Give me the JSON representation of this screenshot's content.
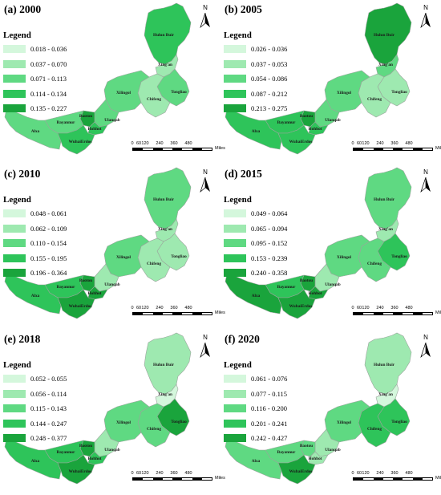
{
  "legend_title": "Legend",
  "region_labels": {
    "hulunbuir": "Hulun Buir",
    "xingan": "Xing'an",
    "tongliao": "Tongliao",
    "chifeng": "Chifeng",
    "xilingol": "Xilingol",
    "ulanqab": "Ulanqab",
    "baotou": "Baotou",
    "hohhot": "Hohhot",
    "bayannur": "Bayannur",
    "alxa": "Alxa",
    "wuhai_ordos": "WuhaiErdos"
  },
  "scale": {
    "ticks": [
      "0",
      "60",
      "120",
      "240",
      "360",
      "480"
    ],
    "unit": "Miles"
  },
  "north_label": "N",
  "panels": [
    {
      "title": "(a) 2000",
      "legend": [
        {
          "label": "0.018 - 0.036",
          "color": "#d4f7dc"
        },
        {
          "label": "0.037 - 0.070",
          "color": "#9ee9b0"
        },
        {
          "label": "0.071 - 0.113",
          "color": "#5fd982"
        },
        {
          "label": "0.114 - 0.134",
          "color": "#2ec45a"
        },
        {
          "label": "0.135 - 0.227",
          "color": "#1aa43c"
        }
      ],
      "classes": {
        "hulunbuir": 3,
        "xingan": 1,
        "tongliao": 2,
        "chifeng": 1,
        "xilingol": 2,
        "ulanqab": 2,
        "baotou": 4,
        "hohhot": 3,
        "bayannur": 2,
        "alxa": 2,
        "wuhai_ordos": 3
      }
    },
    {
      "title": "(b) 2005",
      "legend": [
        {
          "label": "0.026 - 0.036",
          "color": "#d4f7dc"
        },
        {
          "label": "0.037 - 0.053",
          "color": "#9ee9b0"
        },
        {
          "label": "0.054 - 0.086",
          "color": "#5fd982"
        },
        {
          "label": "0.087 - 0.212",
          "color": "#2ec45a"
        },
        {
          "label": "0.213 - 0.275",
          "color": "#1aa43c"
        }
      ],
      "classes": {
        "hulunbuir": 4,
        "xingan": 2,
        "tongliao": 1,
        "chifeng": 1,
        "xilingol": 2,
        "ulanqab": 2,
        "baotou": 4,
        "hohhot": 3,
        "bayannur": 3,
        "alxa": 3,
        "wuhai_ordos": 3
      }
    },
    {
      "title": "(c) 2010",
      "legend": [
        {
          "label": "0.048 - 0.061",
          "color": "#d4f7dc"
        },
        {
          "label": "0.062 - 0.109",
          "color": "#9ee9b0"
        },
        {
          "label": "0.110 - 0.154",
          "color": "#5fd982"
        },
        {
          "label": "0.155 - 0.195",
          "color": "#2ec45a"
        },
        {
          "label": "0.196 - 0.364",
          "color": "#1aa43c"
        }
      ],
      "classes": {
        "hulunbuir": 2,
        "xingan": 1,
        "tongliao": 1,
        "chifeng": 1,
        "xilingol": 2,
        "ulanqab": 1,
        "baotou": 4,
        "hohhot": 4,
        "bayannur": 3,
        "alxa": 3,
        "wuhai_ordos": 4
      }
    },
    {
      "title": "(d) 2015",
      "legend": [
        {
          "label": "0.049 - 0.064",
          "color": "#d4f7dc"
        },
        {
          "label": "0.065 - 0.094",
          "color": "#9ee9b0"
        },
        {
          "label": "0.095 - 0.152",
          "color": "#5fd982"
        },
        {
          "label": "0.153 - 0.239",
          "color": "#2ec45a"
        },
        {
          "label": "0.240 - 0.358",
          "color": "#1aa43c"
        }
      ],
      "classes": {
        "hulunbuir": 2,
        "xingan": 1,
        "tongliao": 3,
        "chifeng": 2,
        "xilingol": 2,
        "ulanqab": 1,
        "baotou": 4,
        "hohhot": 4,
        "bayannur": 3,
        "alxa": 4,
        "wuhai_ordos": 4
      }
    },
    {
      "title": "(e) 2018",
      "legend": [
        {
          "label": "0.052 - 0.055",
          "color": "#d4f7dc"
        },
        {
          "label": "0.056 - 0.114",
          "color": "#9ee9b0"
        },
        {
          "label": "0.115 - 0.143",
          "color": "#5fd982"
        },
        {
          "label": "0.144 - 0.247",
          "color": "#2ec45a"
        },
        {
          "label": "0.248 - 0.377",
          "color": "#1aa43c"
        }
      ],
      "classes": {
        "hulunbuir": 1,
        "xingan": 0,
        "tongliao": 4,
        "chifeng": 2,
        "xilingol": 2,
        "ulanqab": 1,
        "baotou": 4,
        "hohhot": 3,
        "bayannur": 3,
        "alxa": 3,
        "wuhai_ordos": 4
      }
    },
    {
      "title": "(f) 2020",
      "legend": [
        {
          "label": "0.061 - 0.076",
          "color": "#d4f7dc"
        },
        {
          "label": "0.077 - 0.115",
          "color": "#9ee9b0"
        },
        {
          "label": "0.116 - 0.200",
          "color": "#5fd982"
        },
        {
          "label": "0.201 - 0.241",
          "color": "#2ec45a"
        },
        {
          "label": "0.242 - 0.427",
          "color": "#1aa43c"
        }
      ],
      "classes": {
        "hulunbuir": 1,
        "xingan": 0,
        "tongliao": 3,
        "chifeng": 3,
        "xilingol": 2,
        "ulanqab": 1,
        "baotou": 2,
        "hohhot": 1,
        "bayannur": 2,
        "alxa": 2,
        "wuhai_ordos": 4
      }
    }
  ]
}
